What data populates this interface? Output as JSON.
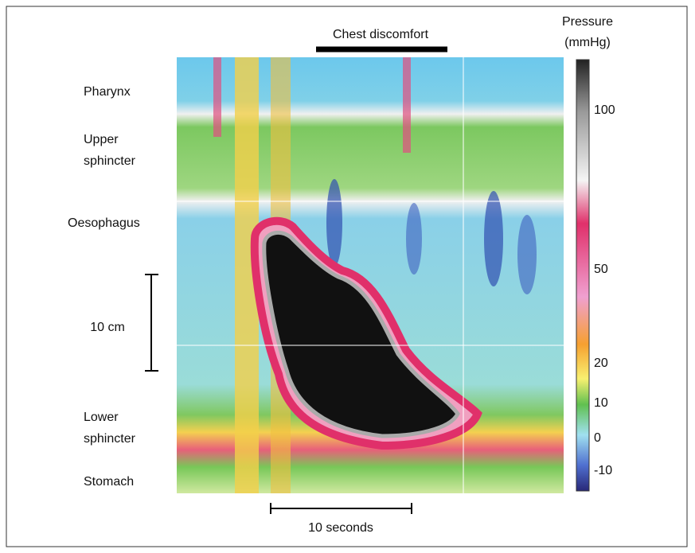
{
  "legend": {
    "title": "Pressure",
    "unit": "(mmHg)",
    "ticks": [
      100,
      50,
      20,
      10,
      0,
      -10
    ]
  },
  "event": "Chest discomfort",
  "regions": [
    "Pharynx",
    "Upper sphincter",
    "Oesophagus",
    "Lower sphincter",
    "Stomach"
  ],
  "scale_bars": {
    "distance": "10 cm",
    "time": "10 seconds"
  }
}
